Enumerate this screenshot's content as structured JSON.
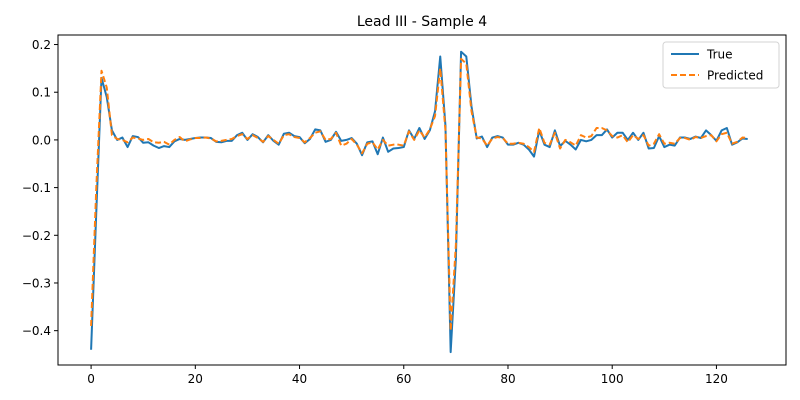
{
  "chart_data": {
    "type": "line",
    "title": "Lead III - Sample 4",
    "xlabel": "",
    "ylabel": "",
    "xlim": [
      -6.35,
      133.35
    ],
    "ylim": [
      -0.472,
      0.22
    ],
    "xticks": [
      0,
      20,
      40,
      60,
      80,
      100,
      120
    ],
    "yticks": [
      -0.4,
      -0.3,
      -0.2,
      -0.1,
      0.0,
      0.1,
      0.2
    ],
    "ytick_labels": [
      "−0.4",
      "−0.3",
      "−0.2",
      "−0.1",
      "0.0",
      "0.1",
      "0.2"
    ],
    "grid": false,
    "legend_position": "top-right",
    "series": [
      {
        "name": "True",
        "color": "#1f77b4",
        "style": "solid",
        "values": [
          -0.44,
          -0.15,
          0.13,
          0.09,
          0.02,
          0.0,
          0.005,
          -0.015,
          0.008,
          0.006,
          -0.006,
          -0.005,
          -0.012,
          -0.017,
          -0.013,
          -0.015,
          -0.003,
          0.002,
          0.0,
          0.002,
          0.004,
          0.005,
          0.005,
          0.004,
          -0.004,
          -0.005,
          -0.002,
          -0.002,
          0.01,
          0.015,
          0.0,
          0.012,
          0.006,
          -0.005,
          0.01,
          -0.002,
          -0.01,
          0.013,
          0.015,
          0.008,
          0.006,
          -0.007,
          0.002,
          0.022,
          0.02,
          -0.004,
          0.0,
          0.017,
          -0.002,
          0.0,
          0.004,
          -0.008,
          -0.032,
          -0.005,
          -0.003,
          -0.03,
          0.005,
          -0.025,
          -0.018,
          -0.017,
          -0.015,
          0.02,
          0.002,
          0.025,
          0.002,
          0.02,
          0.06,
          0.175,
          0.03,
          -0.445,
          -0.25,
          0.185,
          0.175,
          0.07,
          0.003,
          0.007,
          -0.015,
          0.005,
          0.008,
          0.005,
          -0.01,
          -0.01,
          -0.006,
          -0.01,
          -0.02,
          -0.035,
          0.02,
          -0.01,
          -0.015,
          0.02,
          -0.013,
          -0.002,
          -0.01,
          -0.02,
          0.0,
          -0.003,
          0.0,
          0.01,
          0.01,
          0.022,
          0.005,
          0.015,
          0.015,
          0.0,
          0.015,
          0.0,
          0.015,
          -0.018,
          -0.017,
          0.008,
          -0.015,
          -0.01,
          -0.012,
          0.005,
          0.005,
          0.002,
          0.007,
          0.004,
          0.02,
          0.01,
          -0.002,
          0.02,
          0.025,
          -0.01,
          -0.005,
          0.003,
          0.002
        ]
      },
      {
        "name": "Predicted",
        "color": "#ff7f0e",
        "style": "dashed",
        "values": [
          -0.39,
          -0.1,
          0.145,
          0.11,
          0.01,
          0.002,
          0.0,
          -0.005,
          0.005,
          0.003,
          0.0,
          0.002,
          -0.005,
          -0.006,
          -0.004,
          -0.01,
          0.0,
          0.006,
          -0.003,
          0.001,
          0.004,
          0.004,
          0.005,
          0.003,
          -0.003,
          -0.002,
          0.0,
          0.002,
          0.008,
          0.012,
          0.002,
          0.01,
          0.004,
          -0.004,
          0.008,
          0.0,
          -0.008,
          0.01,
          0.012,
          0.006,
          0.004,
          -0.005,
          0.004,
          0.015,
          0.018,
          0.0,
          0.002,
          0.015,
          -0.012,
          -0.008,
          0.002,
          -0.01,
          -0.028,
          -0.008,
          -0.005,
          -0.02,
          0.0,
          -0.012,
          -0.01,
          -0.01,
          -0.012,
          0.018,
          0.0,
          0.02,
          0.005,
          0.022,
          0.05,
          0.15,
          0.02,
          -0.4,
          -0.22,
          0.17,
          0.16,
          0.06,
          0.005,
          0.003,
          -0.012,
          0.003,
          0.006,
          0.004,
          -0.008,
          -0.008,
          -0.006,
          -0.008,
          -0.015,
          -0.025,
          0.025,
          -0.006,
          -0.01,
          0.015,
          -0.018,
          0.0,
          -0.005,
          -0.012,
          0.01,
          0.005,
          0.008,
          0.025,
          0.025,
          0.02,
          0.008,
          0.005,
          0.01,
          -0.005,
          0.01,
          0.002,
          0.01,
          -0.012,
          -0.008,
          0.012,
          -0.008,
          -0.006,
          -0.008,
          0.004,
          0.004,
          0.0,
          0.006,
          0.004,
          0.008,
          0.01,
          -0.003,
          0.012,
          0.015,
          -0.008,
          -0.004,
          0.005,
          0.004
        ]
      }
    ]
  }
}
